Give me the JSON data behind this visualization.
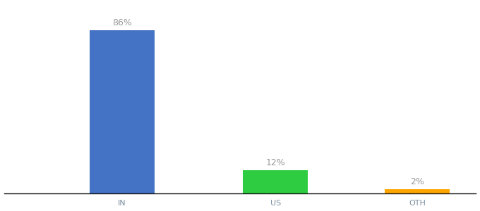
{
  "categories": [
    "IN",
    "US",
    "OTH"
  ],
  "values": [
    86,
    12,
    2
  ],
  "bar_colors": [
    "#4472C4",
    "#2ECC40",
    "#FFA500"
  ],
  "labels": [
    "86%",
    "12%",
    "2%"
  ],
  "background_color": "#ffffff",
  "axis_line_color": "#111111",
  "label_color": "#999999",
  "label_fontsize": 9,
  "tick_fontsize": 8,
  "tick_color": "#7B8FA0",
  "ylim": [
    0,
    100
  ],
  "bar_width": 0.55,
  "xlim": [
    -0.5,
    3.5
  ],
  "x_positions": [
    0.5,
    1.8,
    3.0
  ]
}
